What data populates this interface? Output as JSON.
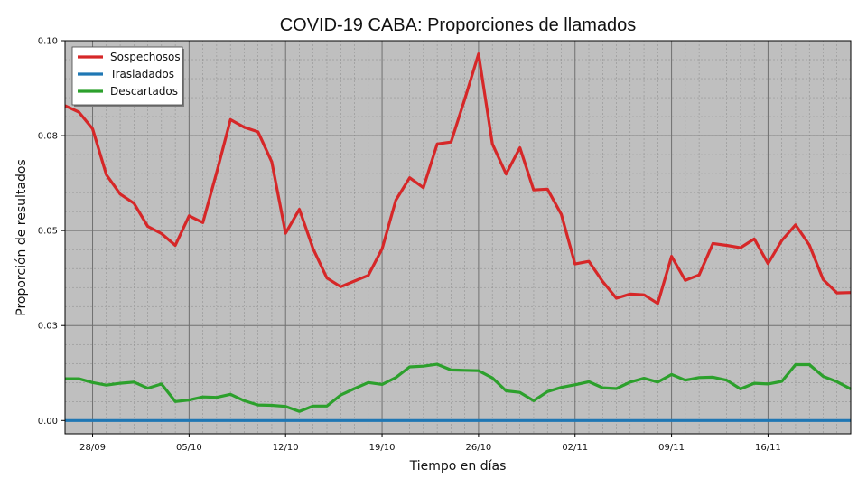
{
  "chart_data": {
    "type": "line",
    "title": "COVID-19 CABA: Proporciones de llamados",
    "xlabel": "Tiempo en días",
    "ylabel": "Proporción de resultados",
    "x_tick_labels": [
      "28/09",
      "05/10",
      "12/10",
      "19/10",
      "26/10",
      "02/11",
      "09/11",
      "16/11"
    ],
    "y_tick_labels": [
      "0.00",
      "0.03",
      "0.05",
      "0.08",
      "0.10"
    ],
    "ylim": [
      -0.0035,
      0.1
    ],
    "x_range_days": [
      -2,
      55
    ],
    "x_tick_days": [
      0,
      7,
      14,
      21,
      28,
      35,
      42,
      49
    ],
    "x_start_date": "2020-09-26",
    "grid": true,
    "legend_position": "top-left",
    "background_color": "#bfbfbf",
    "series": [
      {
        "name": "Sospechosos",
        "color": "#d62728",
        "values": [
          0.0829,
          0.0812,
          0.0768,
          0.0647,
          0.0596,
          0.0572,
          0.0511,
          0.0492,
          0.0461,
          0.0539,
          0.0521,
          0.0653,
          0.0792,
          0.0772,
          0.076,
          0.0681,
          0.0493,
          0.0556,
          0.0452,
          0.0375,
          0.0352,
          0.0367,
          0.0382,
          0.0452,
          0.058,
          0.0639,
          0.0613,
          0.0728,
          0.0733,
          0.0846,
          0.0965,
          0.0728,
          0.0649,
          0.0718,
          0.0607,
          0.0609,
          0.0543,
          0.0412,
          0.0419,
          0.0366,
          0.0322,
          0.0333,
          0.0331,
          0.0308,
          0.0432,
          0.0369,
          0.0383,
          0.0466,
          0.0461,
          0.0455,
          0.0478,
          0.0413,
          0.0474,
          0.0515,
          0.0462,
          0.0371,
          0.0336,
          0.0337
        ]
      },
      {
        "name": "Trasladados",
        "color": "#1f77b4",
        "values": [
          0.0,
          0.0,
          0.0,
          0.0,
          0.0,
          0.0,
          0.0,
          0.0,
          0.0,
          0.0,
          0.0,
          0.0,
          0.0,
          0.0,
          0.0,
          0.0,
          0.0,
          0.0,
          0.0,
          0.0,
          0.0,
          0.0,
          0.0,
          0.0,
          0.0,
          0.0,
          0.0,
          0.0,
          0.0,
          0.0,
          0.0,
          0.0,
          0.0,
          0.0,
          0.0,
          0.0,
          0.0,
          0.0,
          0.0,
          0.0,
          0.0,
          0.0,
          0.0,
          0.0,
          0.0,
          0.0,
          0.0,
          0.0,
          0.0,
          0.0,
          0.0,
          0.0,
          0.0,
          0.0,
          0.0,
          0.0,
          0.0,
          0.0
        ]
      },
      {
        "name": "Descartados",
        "color": "#2ca02c",
        "values": [
          0.011,
          0.011,
          0.01,
          0.0093,
          0.0098,
          0.0101,
          0.0085,
          0.0096,
          0.005,
          0.0054,
          0.0062,
          0.0061,
          0.0069,
          0.0052,
          0.0041,
          0.004,
          0.0037,
          0.0024,
          0.0038,
          0.0038,
          0.0067,
          0.0084,
          0.01,
          0.0095,
          0.0113,
          0.0141,
          0.0143,
          0.0148,
          0.0133,
          0.0132,
          0.0131,
          0.0112,
          0.0078,
          0.0074,
          0.0052,
          0.0076,
          0.0087,
          0.0094,
          0.0102,
          0.0086,
          0.0084,
          0.0101,
          0.0111,
          0.0101,
          0.0121,
          0.0106,
          0.0113,
          0.0114,
          0.0106,
          0.0083,
          0.0098,
          0.0096,
          0.0103,
          0.0147,
          0.0147,
          0.0116,
          0.0102,
          0.0083
        ]
      }
    ]
  }
}
